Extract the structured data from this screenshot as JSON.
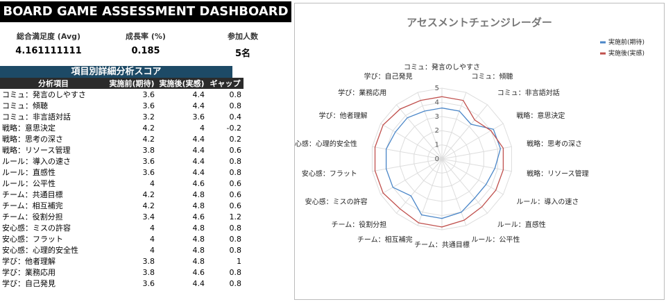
{
  "header": {
    "title": "BOARD GAME ASSESSMENT DASHBOARD"
  },
  "kpis": [
    {
      "label": "総合満足度 (Avg)",
      "value": 4.161111111
    },
    {
      "label": "成長率 (%)",
      "value": 0.185
    },
    {
      "label": "参加人数",
      "value": "5名"
    }
  ],
  "table": {
    "title": "項目別詳細分析スコア",
    "item_header": "分析項目",
    "gap_header": "ギャップ",
    "gaps": [
      0.8,
      0.8,
      0.4,
      -0.2,
      0.2,
      0.6,
      0.8,
      0.8,
      0.6,
      0.6,
      0.6,
      1.2,
      0.8,
      0.8,
      0.8,
      1,
      0.8,
      0.8
    ]
  },
  "chart_data": {
    "type": "radar",
    "title": "アセスメントチェンジレーダー",
    "categories": [
      "コミュ：発言のしやすさ",
      "コミュ：傾聴",
      "コミュ：非言語対話",
      "戦略：意思決定",
      "戦略：思考の深さ",
      "戦略：リソース管理",
      "ルール：導入の速さ",
      "ルール：直感性",
      "ルール：公平性",
      "チーム：共通目標",
      "チーム：相互補完",
      "チーム：役割分担",
      "安心感：ミスの許容",
      "安心感：フラット",
      "安心感：心理的安全性",
      "学び：他者理解",
      "学び：業務応用",
      "学び：自己発見"
    ],
    "series": [
      {
        "name": "実施前(期待)",
        "color": "#4a86c8",
        "values": [
          3.6,
          3.6,
          3.2,
          4.2,
          4.2,
          3.8,
          3.6,
          3.6,
          4,
          4.2,
          4.2,
          3.4,
          4,
          4,
          4,
          3.8,
          3.8,
          3.6
        ]
      },
      {
        "name": "実施後(実感)",
        "color": "#c0504d",
        "values": [
          4.4,
          4.4,
          3.6,
          4,
          4.4,
          4.4,
          4.4,
          4.4,
          4.6,
          4.8,
          4.8,
          4.6,
          4.8,
          4.8,
          4.8,
          4.8,
          4.6,
          4.4
        ]
      }
    ],
    "rlim": [
      0,
      5
    ],
    "rticks": [
      0,
      1,
      2,
      3,
      4,
      5
    ],
    "legend": "top-right"
  }
}
